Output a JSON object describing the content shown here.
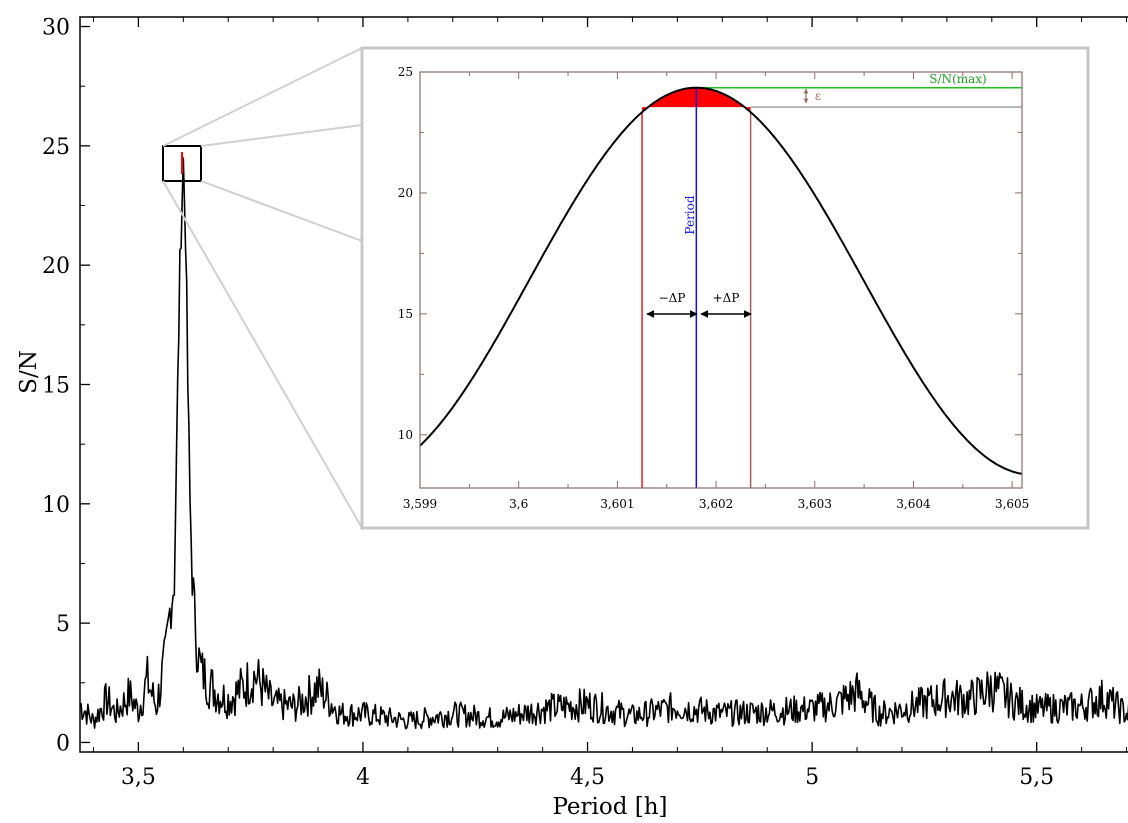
{
  "colors": {
    "spectrum": "#000000",
    "fit_curve": "#000000",
    "fill": "#ff0000",
    "bound_left": "#e02020",
    "bound_right": "#a06060",
    "period_line": "#1010e0",
    "snmax_line": "#20c020",
    "inset_frame": "#c8c8c8"
  },
  "chart_data": [
    {
      "type": "line",
      "title": "",
      "xlabel": "Period [h]",
      "ylabel": "S/N",
      "xlim": [
        3.37,
        5.73
      ],
      "ylim": [
        -0.4,
        30.4
      ],
      "x_ticks": [
        3.5,
        4,
        4.5,
        5,
        5.5
      ],
      "x_tick_labels": [
        "3,5",
        "4",
        "4,5",
        "5",
        "5,5"
      ],
      "y_ticks": [
        0,
        5,
        10,
        15,
        20,
        25,
        30
      ],
      "y_tick_labels": [
        "0",
        "5",
        "10",
        "15",
        "20",
        "25",
        "30"
      ],
      "grid": false,
      "series": [
        {
          "x": [
            3.37,
            3.4,
            3.43,
            3.45,
            3.48,
            3.5,
            3.52,
            3.54,
            3.56,
            3.57,
            3.58,
            3.585,
            3.59,
            3.595,
            3.6,
            3.605,
            3.61,
            3.615,
            3.62,
            3.63,
            3.64,
            3.66,
            3.68,
            3.7,
            3.72,
            3.76,
            3.8,
            3.85,
            3.9,
            3.95,
            4.0,
            4.1,
            4.2,
            4.3,
            4.4,
            4.5,
            4.6,
            4.7,
            4.8,
            4.9,
            5.0,
            5.05,
            5.1,
            5.15,
            5.2,
            5.3,
            5.35,
            5.4,
            5.45,
            5.5,
            5.6,
            5.65,
            5.7,
            5.73
          ],
          "y": [
            1.6,
            0.9,
            1.8,
            1.2,
            2.0,
            1.3,
            2.6,
            1.5,
            3.5,
            5.5,
            6.8,
            12.0,
            17.5,
            21.8,
            24.3,
            21.5,
            15.0,
            10.0,
            7.0,
            4.0,
            3.0,
            2.4,
            2.0,
            1.8,
            2.1,
            2.8,
            1.6,
            1.5,
            2.3,
            1.2,
            1.2,
            0.9,
            1.2,
            1.0,
            1.4,
            1.6,
            1.1,
            1.5,
            1.2,
            1.3,
            1.4,
            1.6,
            2.1,
            1.2,
            1.4,
            1.9,
            1.8,
            2.3,
            1.7,
            1.4,
            1.5,
            1.9,
            1.2,
            1.4
          ]
        }
      ]
    },
    {
      "type": "line",
      "title": "",
      "xlabel": "",
      "ylabel": "",
      "xlim": [
        3.599,
        3.6051
      ],
      "ylim": [
        7.8,
        25.0
      ],
      "x_ticks": [
        3.599,
        3.6,
        3.601,
        3.602,
        3.603,
        3.604,
        3.605
      ],
      "x_tick_labels": [
        "3,599",
        "3,6",
        "3,601",
        "3,602",
        "3,603",
        "3,604",
        "3,605"
      ],
      "y_ticks": [
        10,
        15,
        20,
        25
      ],
      "y_tick_labels": [
        "10",
        "15",
        "20",
        "25"
      ],
      "grid": false,
      "peak": {
        "x": 3.6018,
        "y": 24.35
      },
      "curve_min": 8.35,
      "delta_p_left": 3.60125,
      "delta_p_right": 3.60235,
      "sn_max_level": 24.35,
      "threshold_level": 23.55,
      "annotations": {
        "period_label": "Period",
        "minus_dp": "−ΔP",
        "plus_dp": "+ΔP",
        "snmax_label": "S/N(max)",
        "epsilon_label": "ε"
      }
    }
  ]
}
